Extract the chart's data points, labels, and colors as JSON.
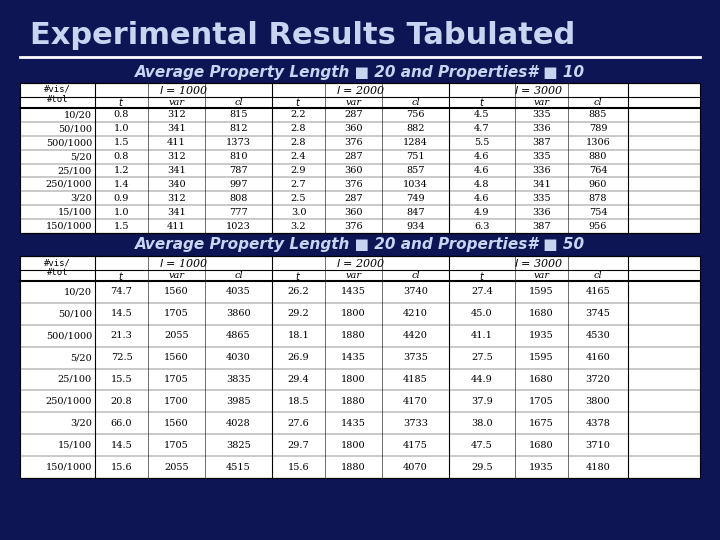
{
  "title": "Experimental Results Tabulated",
  "bg_dark": "#0d1554",
  "bg_white": "#ffffff",
  "title_color": "#c8d4f0",
  "subtitle1": "Average Property Length ■ 20 and Properties# ■ 10",
  "subtitle2": "Average Property Length ■ 20 and Properties# ■ 50",
  "table1_rows": [
    [
      "10/20",
      "0.8",
      "312",
      "815",
      "2.2",
      "287",
      "756",
      "4.5",
      "335",
      "885"
    ],
    [
      "50/100",
      "1.0",
      "341",
      "812",
      "2.8",
      "360",
      "882",
      "4.7",
      "336",
      "789"
    ],
    [
      "500/1000",
      "1.5",
      "411",
      "1373",
      "2.8",
      "376",
      "1284",
      "5.5",
      "387",
      "1306"
    ],
    [
      "5/20",
      "0.8",
      "312",
      "810",
      "2.4",
      "287",
      "751",
      "4.6",
      "335",
      "880"
    ],
    [
      "25/100",
      "1.2",
      "341",
      "787",
      "2.9",
      "360",
      "857",
      "4.6",
      "336",
      "764"
    ],
    [
      "250/1000",
      "1.4",
      "340",
      "997",
      "2.7",
      "376",
      "1034",
      "4.8",
      "341",
      "960"
    ],
    [
      "3/20",
      "0.9",
      "312",
      "808",
      "2.5",
      "287",
      "749",
      "4.6",
      "335",
      "878"
    ],
    [
      "15/100",
      "1.0",
      "341",
      "777",
      "3.0",
      "360",
      "847",
      "4.9",
      "336",
      "754"
    ],
    [
      "150/1000",
      "1.5",
      "411",
      "1023",
      "3.2",
      "376",
      "934",
      "6.3",
      "387",
      "956"
    ]
  ],
  "table2_rows": [
    [
      "10/20",
      "74.7",
      "1560",
      "4035",
      "26.2",
      "1435",
      "3740",
      "27.4",
      "1595",
      "4165"
    ],
    [
      "50/100",
      "14.5",
      "1705",
      "3860",
      "29.2",
      "1800",
      "4210",
      "45.0",
      "1680",
      "3745"
    ],
    [
      "500/1000",
      "21.3",
      "2055",
      "4865",
      "18.1",
      "1880",
      "4420",
      "41.1",
      "1935",
      "4530"
    ],
    [
      "5/20",
      "72.5",
      "1560",
      "4030",
      "26.9",
      "1435",
      "3735",
      "27.5",
      "1595",
      "4160"
    ],
    [
      "25/100",
      "15.5",
      "1705",
      "3835",
      "29.4",
      "1800",
      "4185",
      "44.9",
      "1680",
      "3720"
    ],
    [
      "250/1000",
      "20.8",
      "1700",
      "3985",
      "18.5",
      "1880",
      "4170",
      "37.9",
      "1705",
      "3800"
    ],
    [
      "3/20",
      "66.0",
      "1560",
      "4028",
      "27.6",
      "1435",
      "3733",
      "38.0",
      "1675",
      "4378"
    ],
    [
      "15/100",
      "14.5",
      "1705",
      "3825",
      "29.7",
      "1800",
      "4175",
      "47.5",
      "1680",
      "3710"
    ],
    [
      "150/1000",
      "15.6",
      "2055",
      "4515",
      "15.6",
      "1880",
      "4070",
      "29.5",
      "1935",
      "4180"
    ]
  ]
}
